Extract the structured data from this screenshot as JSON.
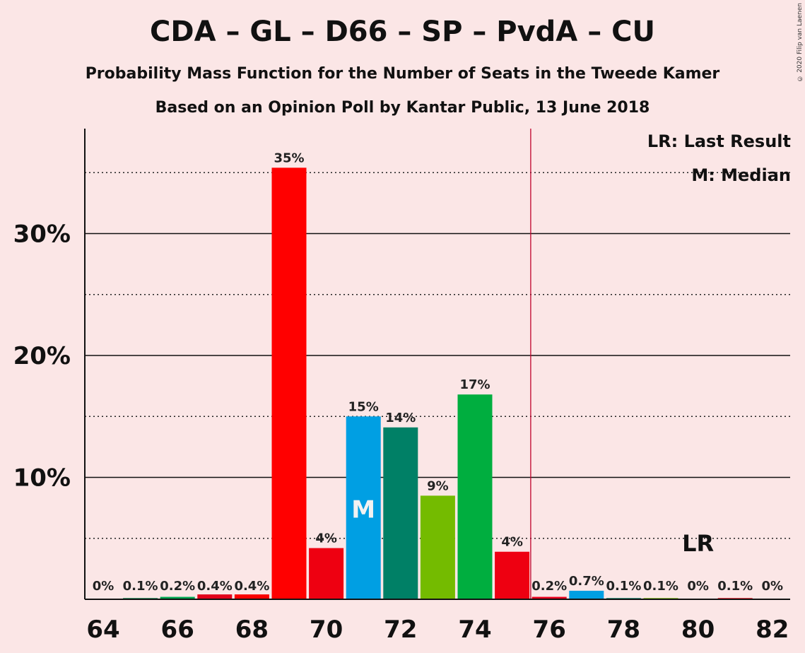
{
  "title": "CDA – GL – D66 – SP – PvdA – CU",
  "subtitle1": "Probability Mass Function for the Number of Seats in the Tweede Kamer",
  "subtitle2": "Based on an Opinion Poll by Kantar Public, 13 June 2018",
  "copyright": "© 2020 Filip van Laenen",
  "legend": {
    "lr": "LR: Last Result",
    "median": "M: Median"
  },
  "chart_data": {
    "type": "bar",
    "x": [
      64,
      65,
      66,
      67,
      68,
      69,
      70,
      71,
      72,
      73,
      74,
      75,
      76,
      77,
      78,
      79,
      80,
      81,
      82
    ],
    "values": [
      0,
      0.1,
      0.2,
      0.4,
      0.4,
      35.4,
      4.2,
      15.0,
      14.1,
      8.5,
      16.8,
      3.9,
      0.2,
      0.7,
      0.1,
      0.1,
      0,
      0.1,
      0
    ],
    "labels": [
      "0%",
      "0.1%",
      "0.2%",
      "0.4%",
      "0.4%",
      "35%",
      "4%",
      "15%",
      "14%",
      "9%",
      "17%",
      "4%",
      "0.2%",
      "0.7%",
      "0.1%",
      "0.1%",
      "0%",
      "0.1%",
      "0%"
    ],
    "colors": [
      "#e8001c",
      "#00834b",
      "#00a651",
      "#e2001a",
      "#fb0000",
      "#ff0000",
      "#ee0011",
      "#009fe3",
      "#008066",
      "#74bb00",
      "#00ae3f",
      "#ee0011",
      "#e8001c",
      "#009fe3",
      "#008066",
      "#74bb00",
      "#00ae3f",
      "#ee0011",
      "#e8001c"
    ],
    "xticks": [
      "64",
      "66",
      "68",
      "70",
      "72",
      "74",
      "76",
      "78",
      "80",
      "82"
    ],
    "yticks": [
      "10%",
      "20%",
      "30%"
    ],
    "ylim": [
      0,
      38
    ],
    "median_seat": 71,
    "median_label": "M",
    "last_result_seat": 80,
    "last_result_label": "LR",
    "majority_line_x": 75.5,
    "grid": true,
    "legend_position": "top-right"
  }
}
